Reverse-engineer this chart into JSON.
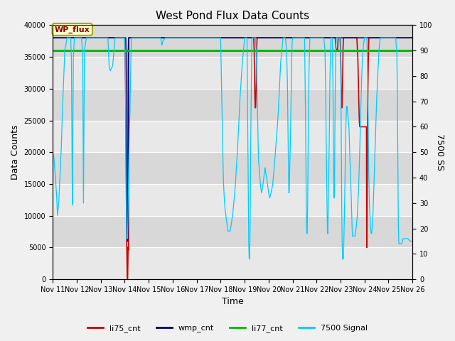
{
  "title": "West Pond Flux Data Counts",
  "xlabel": "Time",
  "ylabel_left": "Data Counts",
  "ylabel_right": "7500 SS",
  "ylim_left": [
    0,
    40000
  ],
  "ylim_right": [
    0,
    100
  ],
  "fig_facecolor": "#f0f0f0",
  "plot_facecolor": "#e8e8e8",
  "annotation_text": "WP_flux",
  "annotation_facecolor": "#ffffcc",
  "annotation_edgecolor": "#aaaa00",
  "li77_value": 36000,
  "li77_color": "#00bb00",
  "li75_color": "#cc0000",
  "wmp_color": "#000080",
  "cyan_color": "#00ccff",
  "grid_color": "#ffffff",
  "title_fontsize": 11,
  "label_fontsize": 9,
  "tick_fontsize": 7,
  "legend_fontsize": 8
}
